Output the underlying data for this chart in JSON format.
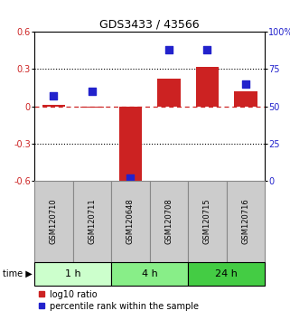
{
  "title": "GDS3433 / 43566",
  "samples": [
    "GSM120710",
    "GSM120711",
    "GSM120648",
    "GSM120708",
    "GSM120715",
    "GSM120716"
  ],
  "log10_ratio": [
    0.01,
    -0.01,
    -0.62,
    0.22,
    0.32,
    0.12
  ],
  "percentile": [
    57,
    60,
    2,
    88,
    88,
    65
  ],
  "ylim_left": [
    -0.6,
    0.6
  ],
  "ylim_right": [
    0,
    100
  ],
  "yticks_left": [
    -0.6,
    -0.3,
    0.0,
    0.3,
    0.6
  ],
  "ytick_labels_left": [
    "-0.6",
    "-0.3",
    "0",
    "0.3",
    "0.6"
  ],
  "yticks_right": [
    0,
    25,
    50,
    75,
    100
  ],
  "ytick_labels_right": [
    "0",
    "25",
    "50",
    "75",
    "100%"
  ],
  "time_groups": [
    {
      "label": "1 h",
      "start": 0,
      "end": 2,
      "color": "#ccffcc"
    },
    {
      "label": "4 h",
      "start": 2,
      "end": 4,
      "color": "#88ee88"
    },
    {
      "label": "24 h",
      "start": 4,
      "end": 6,
      "color": "#44cc44"
    }
  ],
  "bar_color": "#cc2222",
  "dot_color": "#2222cc",
  "zero_line_color": "#cc2222",
  "grid_color": "#000000",
  "bg_color": "#ffffff",
  "sample_bg_color": "#cccccc",
  "sample_border_color": "#888888",
  "bar_width": 0.6,
  "dot_size": 28,
  "title_fontsize": 9,
  "tick_fontsize": 7,
  "sample_fontsize": 6,
  "time_fontsize": 8,
  "legend_fontsize": 7
}
